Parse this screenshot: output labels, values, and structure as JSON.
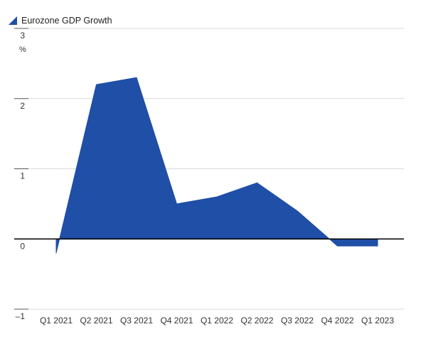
{
  "chart_data": {
    "type": "area",
    "categories": [
      "Q1 2021",
      "Q2 2021",
      "Q3 2021",
      "Q4 2021",
      "Q1 2022",
      "Q2 2022",
      "Q3 2022",
      "Q4 2022",
      "Q1 2023"
    ],
    "series": [
      {
        "name": "Eurozone GDP  Growth",
        "values": [
          -0.2,
          2.2,
          2.3,
          0.5,
          0.6,
          0.8,
          0.4,
          -0.1,
          -0.1
        ],
        "color": "#1f4fa6"
      }
    ],
    "ylim": [
      -1,
      3
    ],
    "yticks": [
      3,
      2,
      1,
      0,
      -1
    ],
    "ytick_labels": [
      "3",
      "2",
      "1",
      "0",
      "–1"
    ],
    "yunit": "%",
    "grid": true,
    "legend": "top-left",
    "zero_line_color": "#000000",
    "grid_color": "#d9d9d9"
  }
}
